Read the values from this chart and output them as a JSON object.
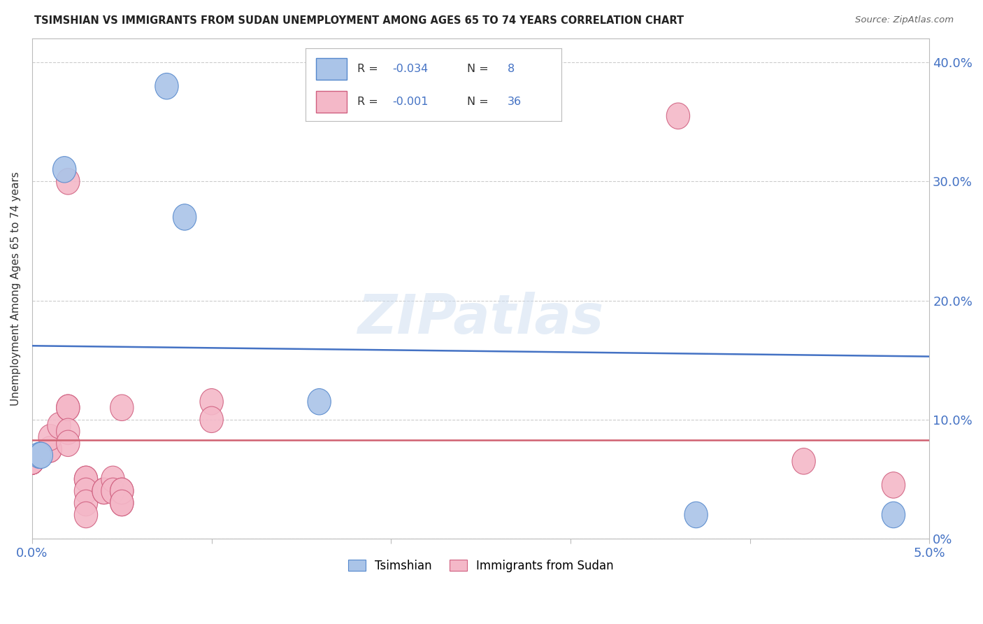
{
  "title": "TSIMSHIAN VS IMMIGRANTS FROM SUDAN UNEMPLOYMENT AMONG AGES 65 TO 74 YEARS CORRELATION CHART",
  "source": "Source: ZipAtlas.com",
  "ylabel": "Unemployment Among Ages 65 to 74 years",
  "legend_blue_label": "Tsimshian",
  "legend_pink_label": "Immigrants from Sudan",
  "blue_color": "#aac4e8",
  "pink_color": "#f4b8c8",
  "blue_edge_color": "#5588cc",
  "pink_edge_color": "#d06080",
  "blue_line_color": "#4472c4",
  "pink_line_color": "#d06070",
  "grid_color": "#cccccc",
  "watermark": "ZIPatlas",
  "xmin": 0.0,
  "xmax": 0.05,
  "ymin": 0.0,
  "ymax": 0.42,
  "tsimshian_x": [
    0.0004,
    0.0005,
    0.0018,
    0.0075,
    0.0085,
    0.016,
    0.037,
    0.048
  ],
  "tsimshian_y": [
    0.07,
    0.07,
    0.31,
    0.38,
    0.27,
    0.115,
    0.02,
    0.02
  ],
  "sudan_x": [
    0.0,
    0.0,
    0.0,
    0.0,
    0.0,
    0.0,
    0.0,
    0.0,
    0.001,
    0.001,
    0.001,
    0.0015,
    0.002,
    0.002,
    0.002,
    0.002,
    0.002,
    0.003,
    0.003,
    0.003,
    0.003,
    0.003,
    0.004,
    0.004,
    0.0045,
    0.0045,
    0.005,
    0.005,
    0.005,
    0.005,
    0.005,
    0.01,
    0.01,
    0.036,
    0.043,
    0.048
  ],
  "sudan_y": [
    0.065,
    0.065,
    0.065,
    0.065,
    0.065,
    0.065,
    0.065,
    0.065,
    0.075,
    0.075,
    0.085,
    0.095,
    0.11,
    0.11,
    0.3,
    0.09,
    0.08,
    0.05,
    0.05,
    0.04,
    0.03,
    0.02,
    0.04,
    0.04,
    0.05,
    0.04,
    0.11,
    0.03,
    0.04,
    0.04,
    0.03,
    0.115,
    0.1,
    0.355,
    0.065,
    0.045
  ],
  "blue_line_y0": 0.162,
  "blue_line_y1": 0.153,
  "pink_line_y0": 0.083,
  "pink_line_y1": 0.083,
  "right_y_ticks": [
    0.0,
    0.1,
    0.2,
    0.3,
    0.4
  ],
  "right_y_labels": [
    "0%",
    "10.0%",
    "20.0%",
    "30.0%",
    "40.0%"
  ]
}
